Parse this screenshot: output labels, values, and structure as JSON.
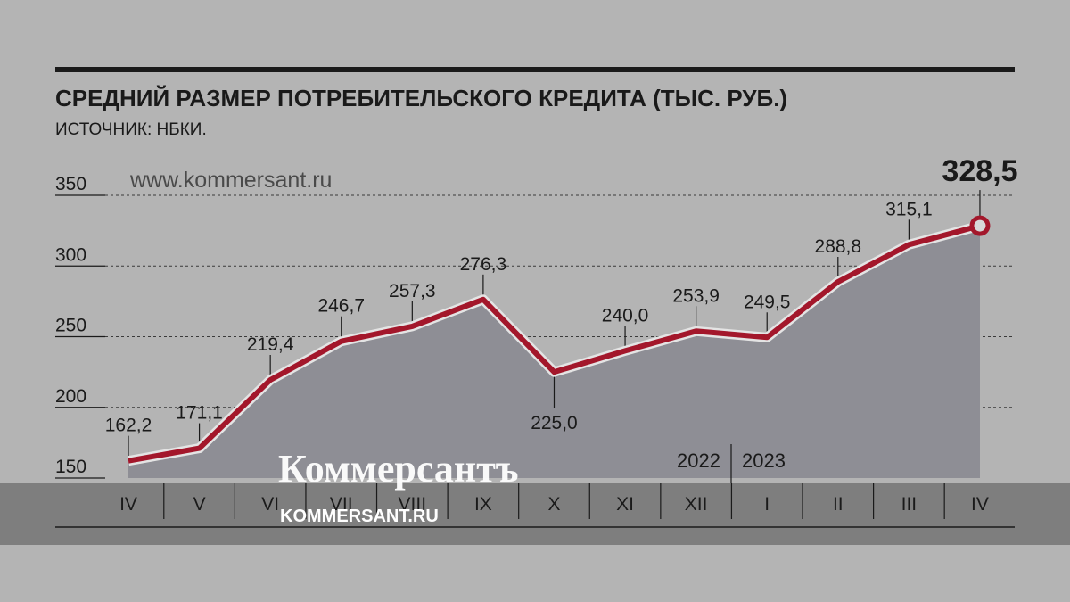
{
  "chart_data": {
    "type": "area",
    "title": "СРЕДНИЙ РАЗМЕР ПОТРЕБИТЕЛЬСКОГО КРЕДИТА (ТЫС. РУБ.)",
    "subtitle": "ИСТОЧНИК: НБКИ.",
    "watermark": "www.kommersant.ru",
    "logo": "Коммерсантъ",
    "logo_sub": "KOMMERSANT.RU",
    "yticks": [
      "150",
      "200",
      "250",
      "300",
      "350"
    ],
    "ylim": [
      150,
      350
    ],
    "grid": true,
    "categories": [
      "IV",
      "V",
      "VI",
      "VII",
      "VIII",
      "IX",
      "X",
      "XI",
      "XII",
      "I",
      "II",
      "III",
      "IV"
    ],
    "values": [
      162.2,
      171.1,
      219.4,
      246.7,
      257.3,
      276.3,
      225.0,
      240.0,
      253.9,
      249.5,
      288.8,
      315.1,
      328.5
    ],
    "labels": [
      "162,2",
      "171,1",
      "219,4",
      "246,7",
      "257,3",
      "276,3",
      "225,0",
      "240,0",
      "253,9",
      "249,5",
      "288,8",
      "315,1",
      "328,5"
    ],
    "years": [
      "2022",
      "2023"
    ],
    "colors": {
      "line": "#a3172b",
      "fill": "#8e8e95",
      "background": "#b4b4b4",
      "text": "#1a1a1a"
    }
  }
}
